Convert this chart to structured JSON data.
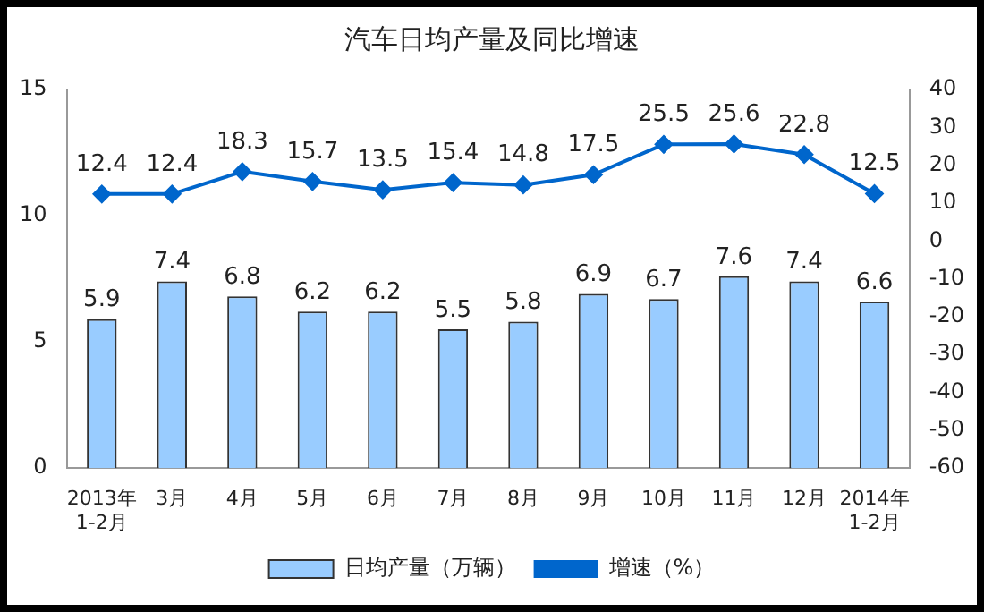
{
  "chart_data": {
    "type": "bar",
    "title": "汽车日均产量及同比增速",
    "categories": [
      "2013年\n1-2月",
      "3月",
      "4月",
      "5月",
      "6月",
      "7月",
      "8月",
      "9月",
      "10月",
      "11月",
      "12月",
      "2014年\n1-2月"
    ],
    "series": [
      {
        "name": "日均产量（万辆）",
        "color": "#99ccff",
        "values": [
          5.9,
          7.4,
          6.8,
          6.2,
          6.2,
          5.5,
          5.8,
          6.9,
          6.7,
          7.6,
          7.4,
          6.6
        ]
      },
      {
        "name": "增速（%）",
        "type": "line",
        "axis": "y2",
        "color": "#0066cc",
        "values": [
          12.4,
          12.4,
          18.3,
          15.7,
          13.5,
          15.4,
          14.8,
          17.5,
          25.5,
          25.6,
          22.8,
          12.5
        ]
      }
    ],
    "ylim": [
      0,
      15
    ],
    "yticks": [
      0,
      5,
      10,
      15
    ],
    "y2lim": [
      -60,
      40
    ],
    "y2ticks": [
      -60,
      -50,
      -40,
      -30,
      -20,
      -10,
      0,
      10,
      20,
      30,
      40
    ],
    "data_labels": true,
    "grid": false,
    "legend": "bottom",
    "marker": "diamond",
    "line_style": "solid"
  }
}
